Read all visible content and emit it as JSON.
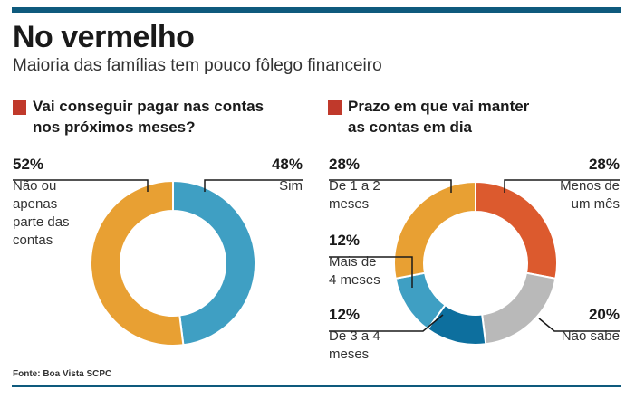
{
  "title": "No vermelho",
  "subtitle": "Maioria das famílias tem pouco fôlego financeiro",
  "source": "Fonte: Boa Vista SCPC",
  "colors": {
    "accent": "#c0392b",
    "orange": "#e8a033",
    "blue": "#3f9fc3",
    "red": "#dc5a2e",
    "gray": "#b9b9b9",
    "darkblue": "#0d6f9e",
    "rule": "#0e5a7d"
  },
  "chart_data": [
    {
      "type": "pie",
      "title": "Vai conseguir pagar nas contas nos próximos meses?",
      "title_lines": [
        "Vai conseguir pagar nas contas",
        "nos próximos meses?"
      ],
      "slices": [
        {
          "name": "Sim",
          "value": 48,
          "label_pct": "48%",
          "label_lines": [
            "Sim"
          ],
          "color": "#3f9fc3"
        },
        {
          "name": "Não ou apenas parte das contas",
          "value": 52,
          "label_pct": "52%",
          "label_lines": [
            "Não ou",
            "apenas",
            "parte das",
            "contas"
          ],
          "color": "#e8a033"
        }
      ]
    },
    {
      "type": "pie",
      "title": "Prazo em que vai manter as contas em dia",
      "title_lines": [
        "Prazo em que vai manter",
        "as contas em dia"
      ],
      "slices": [
        {
          "name": "Menos de um mês",
          "value": 28,
          "label_pct": "28%",
          "label_lines": [
            "Menos de",
            "um mês"
          ],
          "color": "#dc5a2e"
        },
        {
          "name": "Não sabe",
          "value": 20,
          "label_pct": "20%",
          "label_lines": [
            "Não sabe"
          ],
          "color": "#b9b9b9"
        },
        {
          "name": "De 3 a 4 meses",
          "value": 12,
          "label_pct": "12%",
          "label_lines": [
            "De 3 a 4",
            "meses"
          ],
          "color": "#0d6f9e"
        },
        {
          "name": "Mais de 4 meses",
          "value": 12,
          "label_pct": "12%",
          "label_lines": [
            "Mais de",
            "4 meses"
          ],
          "color": "#3f9fc3"
        },
        {
          "name": "De 1 a 2 meses",
          "value": 28,
          "label_pct": "28%",
          "label_lines": [
            "De 1 a 2",
            "meses"
          ],
          "color": "#e8a033"
        }
      ]
    }
  ]
}
